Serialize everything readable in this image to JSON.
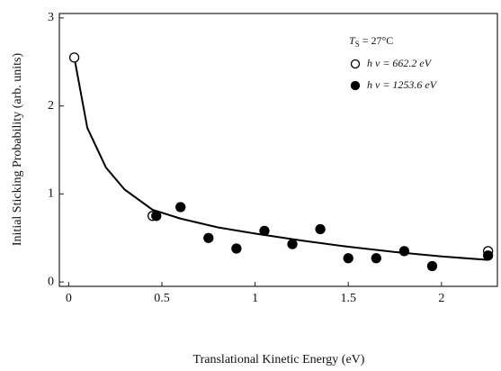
{
  "chart_data": {
    "type": "scatter",
    "x_label": "Translational Kinetic Energy (eV)",
    "y_label": "Initial Sticking Probability (arb. units)",
    "annotation": {
      "symbol": "T",
      "subscript": "S",
      "text": "= 27°C"
    },
    "xlim": [
      -0.05,
      2.3
    ],
    "xticks": [
      0,
      0.5,
      1,
      1.5,
      2
    ],
    "ylim": [
      -0.05,
      3.05
    ],
    "yticks": [
      0,
      1,
      2,
      3
    ],
    "series": [
      {
        "name": "h ν = 662.2 eV",
        "color": "#000000",
        "marker": "open",
        "x": [
          0.03,
          0.45,
          2.25
        ],
        "values": [
          2.55,
          0.75,
          0.35
        ]
      },
      {
        "name": "h ν = 1253.6 eV",
        "color": "#000000",
        "marker": "filled",
        "x": [
          0.47,
          0.6,
          0.75,
          0.9,
          1.05,
          1.2,
          1.35,
          1.5,
          1.65,
          1.8,
          1.95,
          2.25
        ],
        "values": [
          0.75,
          0.85,
          0.5,
          0.38,
          0.58,
          0.43,
          0.6,
          0.27,
          0.27,
          0.35,
          0.18,
          0.3
        ]
      }
    ],
    "fit": {
      "color": "#000000",
      "x": [
        0.03,
        0.1,
        0.2,
        0.3,
        0.45,
        0.6,
        0.8,
        1.0,
        1.25,
        1.5,
        1.75,
        2.0,
        2.25
      ],
      "values": [
        2.55,
        1.75,
        1.3,
        1.05,
        0.82,
        0.72,
        0.62,
        0.55,
        0.47,
        0.4,
        0.34,
        0.29,
        0.25
      ]
    }
  }
}
